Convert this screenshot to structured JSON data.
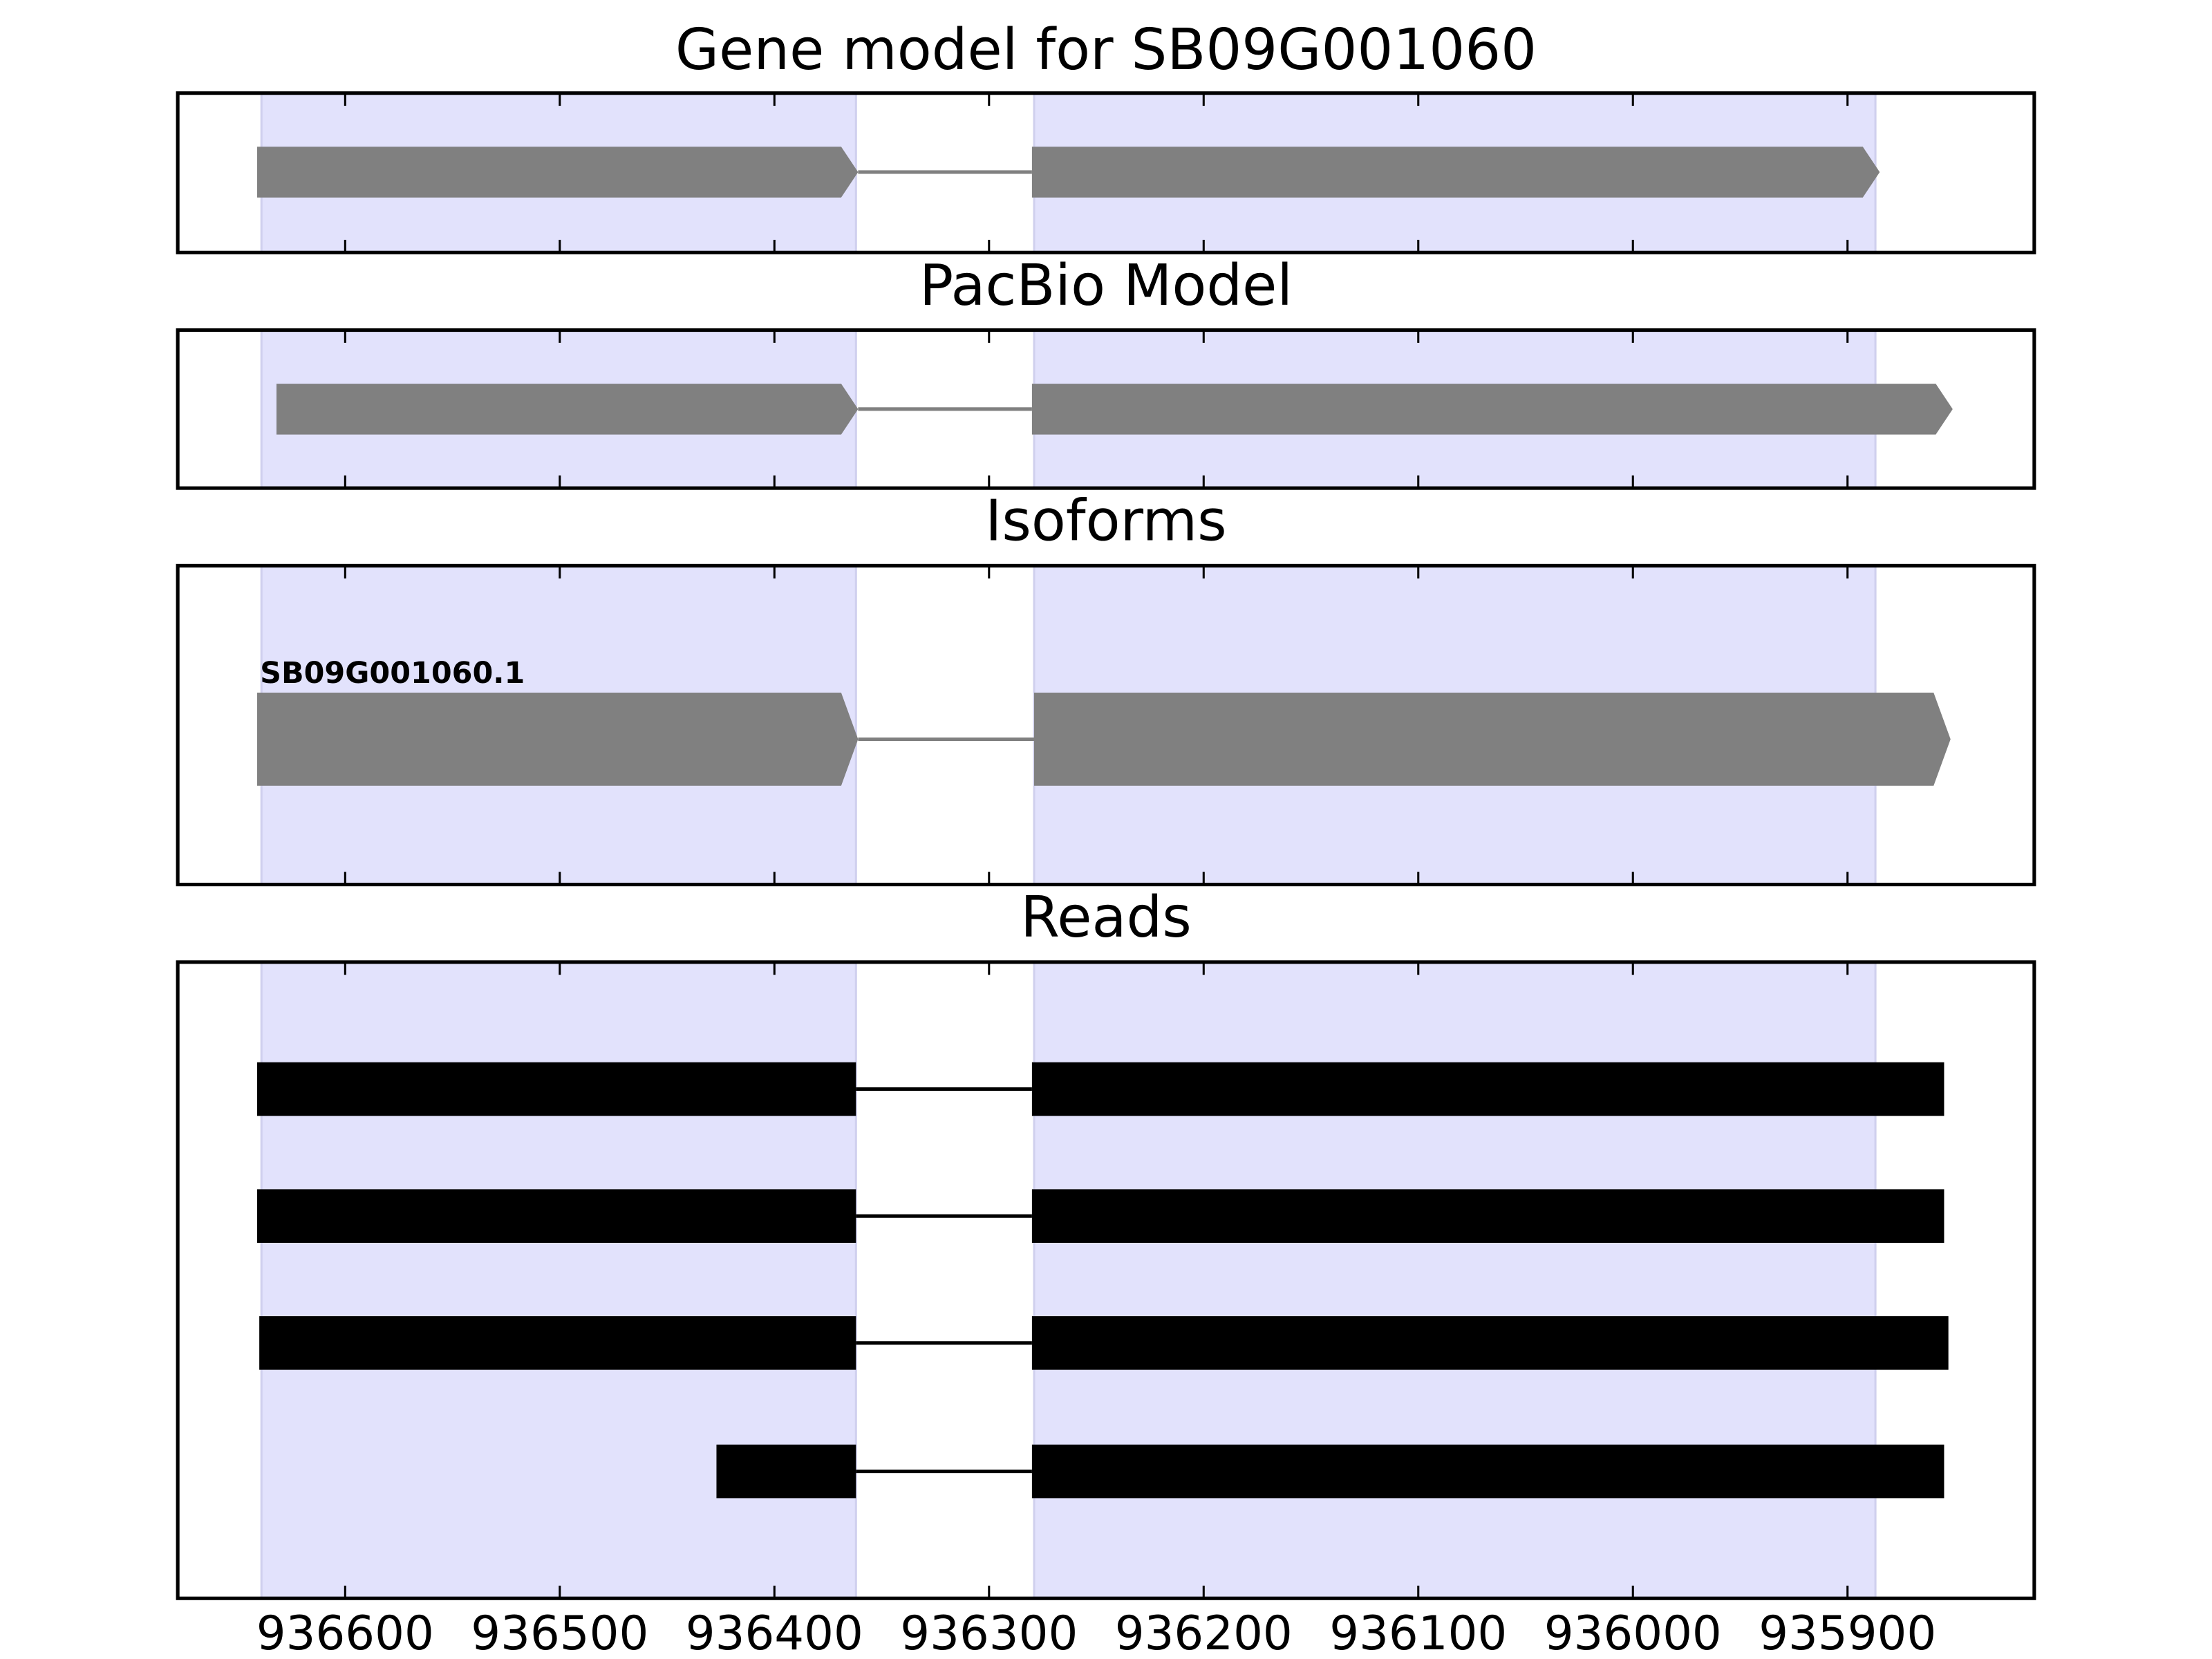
{
  "chart_data": [
    {
      "type": "gene-track",
      "title": "Gene model for SB09G001060",
      "style": "arrow",
      "color": "#808080",
      "shade_color": "#e2e2fc",
      "xlim": [
        936678,
        935813
      ],
      "xticks": [
        936600,
        936500,
        936400,
        936300,
        936200,
        936100,
        936000,
        935900
      ],
      "shaded": [
        [
          936639,
          936362
        ],
        [
          936279,
          935887
        ]
      ],
      "features": [
        {
          "exons": [
            [
              936641,
              936361
            ],
            [
              936280,
              935885
            ]
          ]
        }
      ]
    },
    {
      "type": "gene-track",
      "title": "PacBio Model",
      "style": "arrow",
      "color": "#808080",
      "shade_color": "#e2e2fc",
      "xlim": [
        936678,
        935813
      ],
      "xticks": [
        936600,
        936500,
        936400,
        936300,
        936200,
        936100,
        936000,
        935900
      ],
      "shaded": [
        [
          936639,
          936362
        ],
        [
          936279,
          935887
        ]
      ],
      "features": [
        {
          "exons": [
            [
              936632,
              936361
            ],
            [
              936280,
              935851
            ]
          ]
        }
      ]
    },
    {
      "type": "gene-track",
      "title": "Isoforms",
      "style": "arrow",
      "color": "#808080",
      "shade_color": "#e2e2fc",
      "xlim": [
        936678,
        935813
      ],
      "xticks": [
        936600,
        936500,
        936400,
        936300,
        936200,
        936100,
        936000,
        935900
      ],
      "shaded": [
        [
          936639,
          936362
        ],
        [
          936279,
          935887
        ]
      ],
      "features": [
        {
          "label": "SB09G001060.1",
          "exons": [
            [
              936641,
              936361
            ],
            [
              936279,
              935852
            ]
          ]
        }
      ]
    },
    {
      "type": "gene-track",
      "title": "Reads",
      "style": "block",
      "color": "#000000",
      "shade_color": "#e2e2fc",
      "xlim": [
        936678,
        935813
      ],
      "xticks": [
        936600,
        936500,
        936400,
        936300,
        936200,
        936100,
        936000,
        935900
      ],
      "shaded": [
        [
          936639,
          936362
        ],
        [
          936279,
          935887
        ]
      ],
      "features": [
        {
          "exons": [
            [
              936641,
              936362
            ],
            [
              936280,
              935855
            ]
          ]
        },
        {
          "exons": [
            [
              936641,
              936362
            ],
            [
              936280,
              935855
            ]
          ]
        },
        {
          "exons": [
            [
              936640,
              936362
            ],
            [
              936280,
              935853
            ]
          ]
        },
        {
          "exons": [
            [
              936427,
              936362
            ],
            [
              936280,
              935855
            ]
          ]
        }
      ]
    }
  ]
}
